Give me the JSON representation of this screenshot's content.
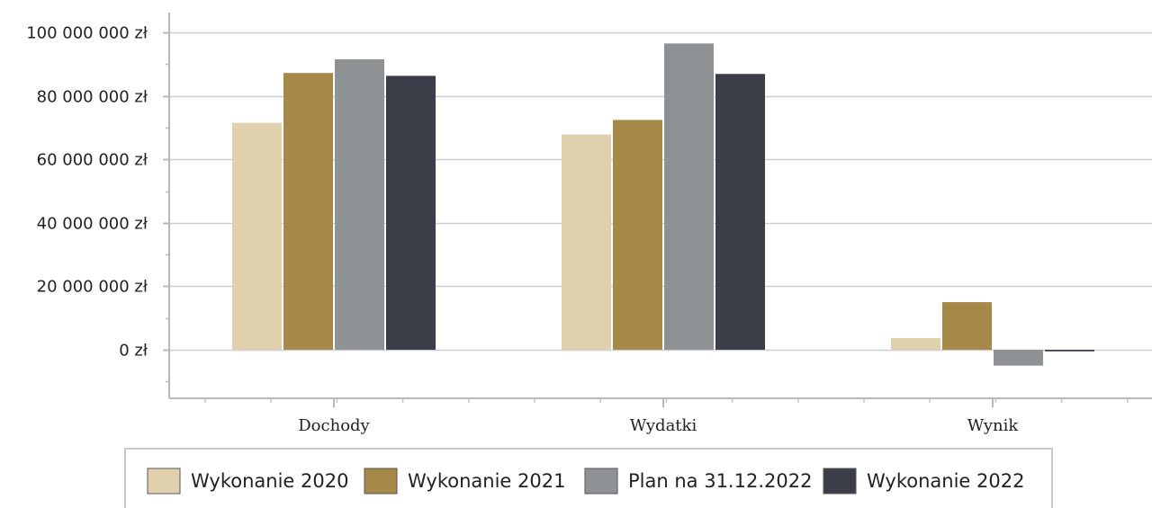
{
  "chart_data": {
    "type": "bar",
    "categories": [
      "Dochody",
      "Wydatki",
      "Wynik"
    ],
    "series": [
      {
        "name": "Wykonanie 2020",
        "color": "#e0d0ae",
        "values": [
          71500000,
          67800000,
          3700000
        ]
      },
      {
        "name": "Wykonanie 2021",
        "color": "#a68849",
        "values": [
          87200000,
          72400000,
          15000000
        ]
      },
      {
        "name": "Plan na 31.12.2022",
        "color": "#8f9294",
        "values": [
          91500000,
          96500000,
          -5000000
        ]
      },
      {
        "name": "Wykonanie 2022",
        "color": "#3b3e48",
        "values": [
          86300000,
          86900000,
          -500000
        ]
      }
    ],
    "yticks": [
      0,
      20000000,
      40000000,
      60000000,
      80000000,
      100000000
    ],
    "ytick_labels": [
      "0 zł",
      "20 000 000 zł",
      "40 000 000 zł",
      "60 000 000 zł",
      "80 000 000 zł",
      "100 000 000 zł"
    ],
    "ylim": [
      -15000000,
      105000000
    ],
    "grid": true,
    "legend_position": "bottom",
    "title": "",
    "xlabel": "",
    "ylabel": ""
  }
}
